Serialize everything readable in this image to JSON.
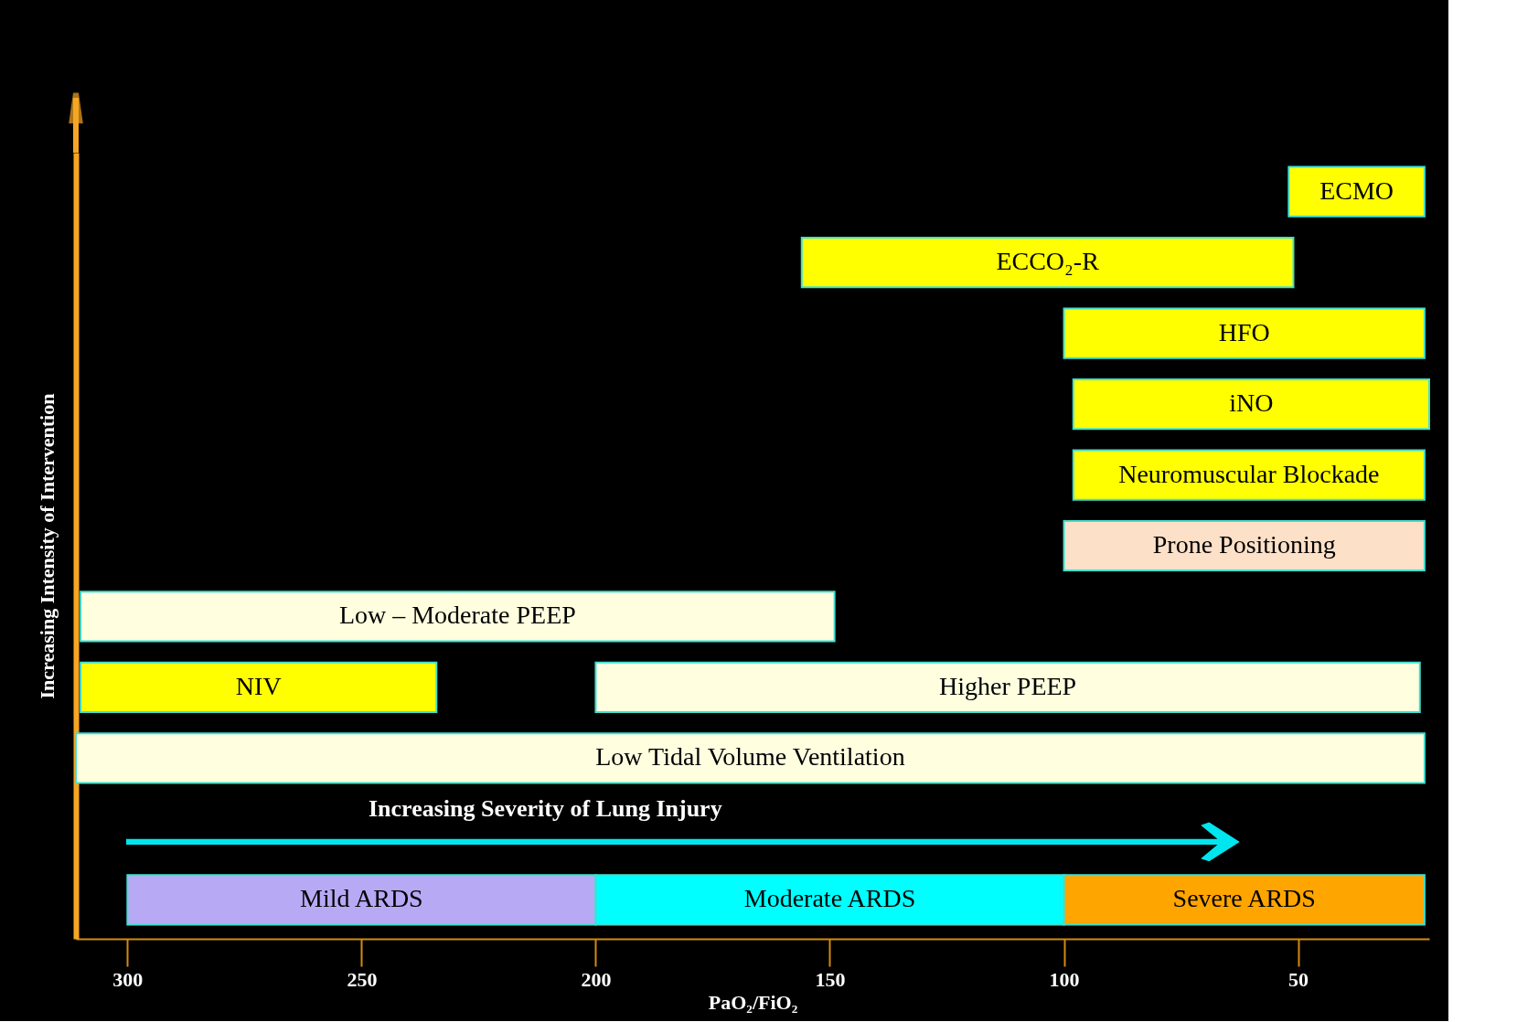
{
  "chart_data": {
    "type": "bar",
    "orientation": "horizontal",
    "categories": [
      null,
      null,
      null,
      null,
      null,
      null,
      null,
      null,
      null,
      null,
      null
    ],
    "series": [
      {
        "name": "ECMO",
        "color": "#ffff00",
        "values": [
          29,
          null,
          null,
          null,
          null,
          null,
          null,
          null,
          null,
          null,
          null
        ],
        "base": [
          23,
          null,
          null,
          null,
          null,
          null,
          null,
          null,
          null,
          null,
          null
        ]
      },
      {
        "name": "ECCO₂-R",
        "color": "#ffff00",
        "values": [
          null,
          105,
          null,
          null,
          null,
          null,
          null,
          null,
          null,
          null,
          null
        ],
        "base": [
          null,
          51,
          null,
          null,
          null,
          null,
          null,
          null,
          null,
          null,
          null
        ]
      },
      {
        "name": "HFO",
        "color": "#ffff00",
        "values": [
          null,
          null,
          77,
          null,
          null,
          null,
          null,
          null,
          null,
          null,
          null
        ],
        "base": [
          null,
          null,
          23,
          null,
          null,
          null,
          null,
          null,
          null,
          null,
          null
        ]
      },
      {
        "name": "iNO",
        "color": "#ffff00",
        "values": [
          null,
          null,
          null,
          76,
          null,
          null,
          null,
          null,
          null,
          null,
          null
        ],
        "base": [
          null,
          null,
          null,
          22,
          null,
          null,
          null,
          null,
          null,
          null,
          null
        ]
      },
      {
        "name": "Neuromuscular Blockade",
        "color": "#ffff00",
        "values": [
          null,
          null,
          null,
          null,
          75,
          null,
          null,
          null,
          null,
          null,
          null
        ],
        "base": [
          null,
          null,
          null,
          null,
          23,
          null,
          null,
          null,
          null,
          null,
          null
        ]
      },
      {
        "name": "Prone Positioning",
        "color": "#fde0c8",
        "values": [
          null,
          null,
          null,
          null,
          null,
          77,
          null,
          null,
          null,
          null,
          null
        ],
        "base": [
          null,
          null,
          null,
          null,
          null,
          23,
          null,
          null,
          null,
          null,
          null
        ]
      },
      {
        "name": "Low – Moderate PEEP",
        "color": "#ffffe0",
        "values": [
          null,
          null,
          null,
          null,
          null,
          null,
          161,
          null,
          null,
          null,
          null
        ],
        "base": [
          null,
          null,
          null,
          null,
          null,
          null,
          149,
          null,
          null,
          null,
          null
        ]
      },
      {
        "name": "NIV",
        "color": "#ffff00",
        "values": [
          null,
          null,
          null,
          null,
          null,
          null,
          null,
          76,
          null,
          null,
          null
        ],
        "base": [
          null,
          null,
          null,
          null,
          null,
          null,
          null,
          234,
          null,
          null,
          null
        ]
      },
      {
        "name": "Higher PEEP",
        "color": "#ffffe0",
        "values": [
          null,
          null,
          null,
          null,
          null,
          null,
          null,
          176,
          null,
          null,
          null
        ],
        "base": [
          null,
          null,
          null,
          null,
          null,
          null,
          null,
          24,
          null,
          null,
          null
        ]
      },
      {
        "name": "Low Tidal Volume Ventilation",
        "color": "#ffffe0",
        "values": [
          null,
          null,
          null,
          null,
          null,
          null,
          null,
          null,
          288,
          null,
          null
        ],
        "base": [
          null,
          null,
          null,
          null,
          null,
          null,
          null,
          null,
          23,
          null,
          null
        ]
      },
      {
        "name": "Mild ARDS",
        "color": "#b8a9f5",
        "values": [
          null,
          null,
          null,
          null,
          null,
          null,
          null,
          null,
          null,
          null,
          100
        ],
        "base": [
          null,
          null,
          null,
          null,
          null,
          null,
          null,
          null,
          null,
          null,
          200
        ]
      },
      {
        "name": "Moderate ARDS",
        "color": "#00ffff",
        "values": [
          null,
          null,
          null,
          null,
          null,
          null,
          null,
          null,
          null,
          null,
          100
        ],
        "base": [
          null,
          null,
          null,
          null,
          null,
          null,
          null,
          null,
          null,
          null,
          100
        ]
      },
      {
        "name": "Severe ARDS",
        "color": "#ffa500",
        "values": [
          null,
          null,
          null,
          null,
          null,
          null,
          null,
          null,
          null,
          null,
          77
        ],
        "base": [
          null,
          null,
          null,
          null,
          null,
          null,
          null,
          null,
          null,
          null,
          23
        ]
      }
    ],
    "xlabel": "PaO₂/FiO₂",
    "ylabel": "Increasing Intensity of Intervention",
    "annotations": [
      "Increasing Severity of Lung Injury"
    ],
    "xlim": [
      311,
      22
    ],
    "xticks": [
      300,
      250,
      200,
      150,
      100,
      50
    ],
    "grid": false,
    "legend": false,
    "tick_labels": "x"
  }
}
